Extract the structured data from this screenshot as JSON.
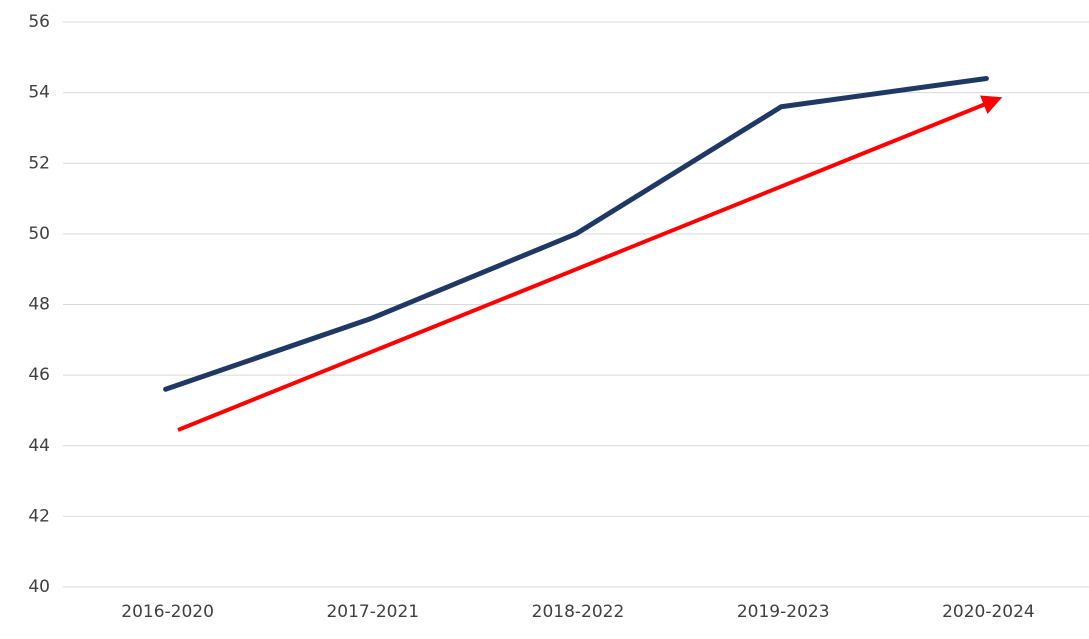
{
  "chart_data": {
    "type": "line",
    "categories": [
      "2016-2020",
      "2017-2021",
      "2018-2022",
      "2019-2023",
      "2020-2024"
    ],
    "series": [
      {
        "color": "#1f3864",
        "values": [
          45.6,
          47.6,
          50.0,
          53.6,
          54.4
        ]
      }
    ],
    "ylim": [
      40,
      56
    ],
    "yticks": [
      40,
      42,
      44,
      46,
      48,
      50,
      52,
      54,
      56
    ],
    "grid": true
  }
}
